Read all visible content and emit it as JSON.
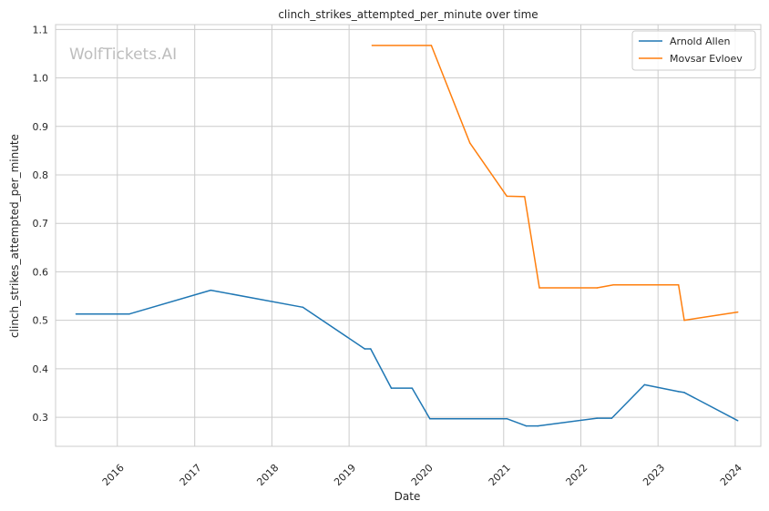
{
  "chart_data": {
    "type": "line",
    "title": "clinch_strikes_attempted_per_minute over time",
    "xlabel": "Date",
    "ylabel": "clinch_strikes_attempted_per_minute",
    "watermark": "WolfTickets.AI",
    "xlim": [
      "2015-03-15",
      "2024-05-01"
    ],
    "ylim": [
      0.24,
      1.11
    ],
    "x_ticks": [
      "2016",
      "2017",
      "2018",
      "2019",
      "2020",
      "2021",
      "2022",
      "2023",
      "2024"
    ],
    "y_ticks": [
      "0.3",
      "0.4",
      "0.5",
      "0.6",
      "0.7",
      "0.8",
      "0.9",
      "1.0",
      "1.1"
    ],
    "grid": true,
    "legend": "top-right",
    "series": [
      {
        "name": "Arnold Allen",
        "color": "#1f77b4",
        "points": [
          {
            "x": "2015-06-20",
            "y": 0.513
          },
          {
            "x": "2016-02-27",
            "y": 0.513
          },
          {
            "x": "2017-03-18",
            "y": 0.562
          },
          {
            "x": "2018-05-27",
            "y": 0.527
          },
          {
            "x": "2019-03-16",
            "y": 0.441
          },
          {
            "x": "2019-04-13",
            "y": 0.441
          },
          {
            "x": "2019-07-20",
            "y": 0.36
          },
          {
            "x": "2019-10-26",
            "y": 0.36
          },
          {
            "x": "2020-01-18",
            "y": 0.297
          },
          {
            "x": "2021-01-16",
            "y": 0.297
          },
          {
            "x": "2021-04-17",
            "y": 0.282
          },
          {
            "x": "2021-06-12",
            "y": 0.282
          },
          {
            "x": "2022-03-19",
            "y": 0.298
          },
          {
            "x": "2022-05-27",
            "y": 0.298
          },
          {
            "x": "2022-10-29",
            "y": 0.367
          },
          {
            "x": "2023-04-08",
            "y": 0.353
          },
          {
            "x": "2023-05-05",
            "y": 0.351
          },
          {
            "x": "2024-01-13",
            "y": 0.293
          }
        ]
      },
      {
        "name": "Movsar Evloev",
        "color": "#ff7f0e",
        "points": [
          {
            "x": "2019-04-20",
            "y": 1.067
          },
          {
            "x": "2020-01-25",
            "y": 1.067
          },
          {
            "x": "2020-07-25",
            "y": 0.866
          },
          {
            "x": "2021-01-16",
            "y": 0.756
          },
          {
            "x": "2021-04-10",
            "y": 0.755
          },
          {
            "x": "2021-06-19",
            "y": 0.567
          },
          {
            "x": "2022-03-19",
            "y": 0.567
          },
          {
            "x": "2022-06-04",
            "y": 0.573
          },
          {
            "x": "2023-04-08",
            "y": 0.573
          },
          {
            "x": "2023-05-05",
            "y": 0.5
          },
          {
            "x": "2024-01-13",
            "y": 0.517
          }
        ]
      }
    ]
  }
}
